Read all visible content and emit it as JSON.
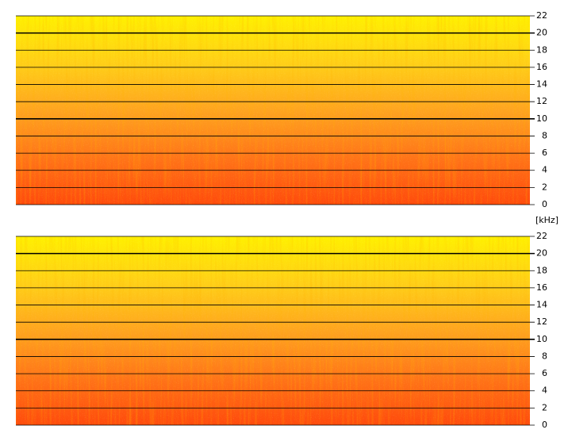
{
  "chart_data": [
    {
      "type": "spectrogram",
      "ylabel": "[kHz]",
      "ylim": [
        0,
        22
      ],
      "yticks": [
        0,
        2,
        4,
        6,
        8,
        10,
        12,
        14,
        16,
        18,
        20,
        22
      ],
      "grid": true,
      "colors": [
        "#ff4a0c",
        "#ff7418",
        "#ffa420",
        "#ffd018",
        "#fff000"
      ]
    },
    {
      "type": "spectrogram",
      "ylim": [
        0,
        22
      ],
      "yticks": [
        0,
        2,
        4,
        6,
        8,
        10,
        12,
        14,
        16,
        18,
        20,
        22
      ],
      "grid": true,
      "colors": [
        "#ff4a0c",
        "#ff7418",
        "#ffa420",
        "#ffd018",
        "#fff000"
      ]
    }
  ]
}
